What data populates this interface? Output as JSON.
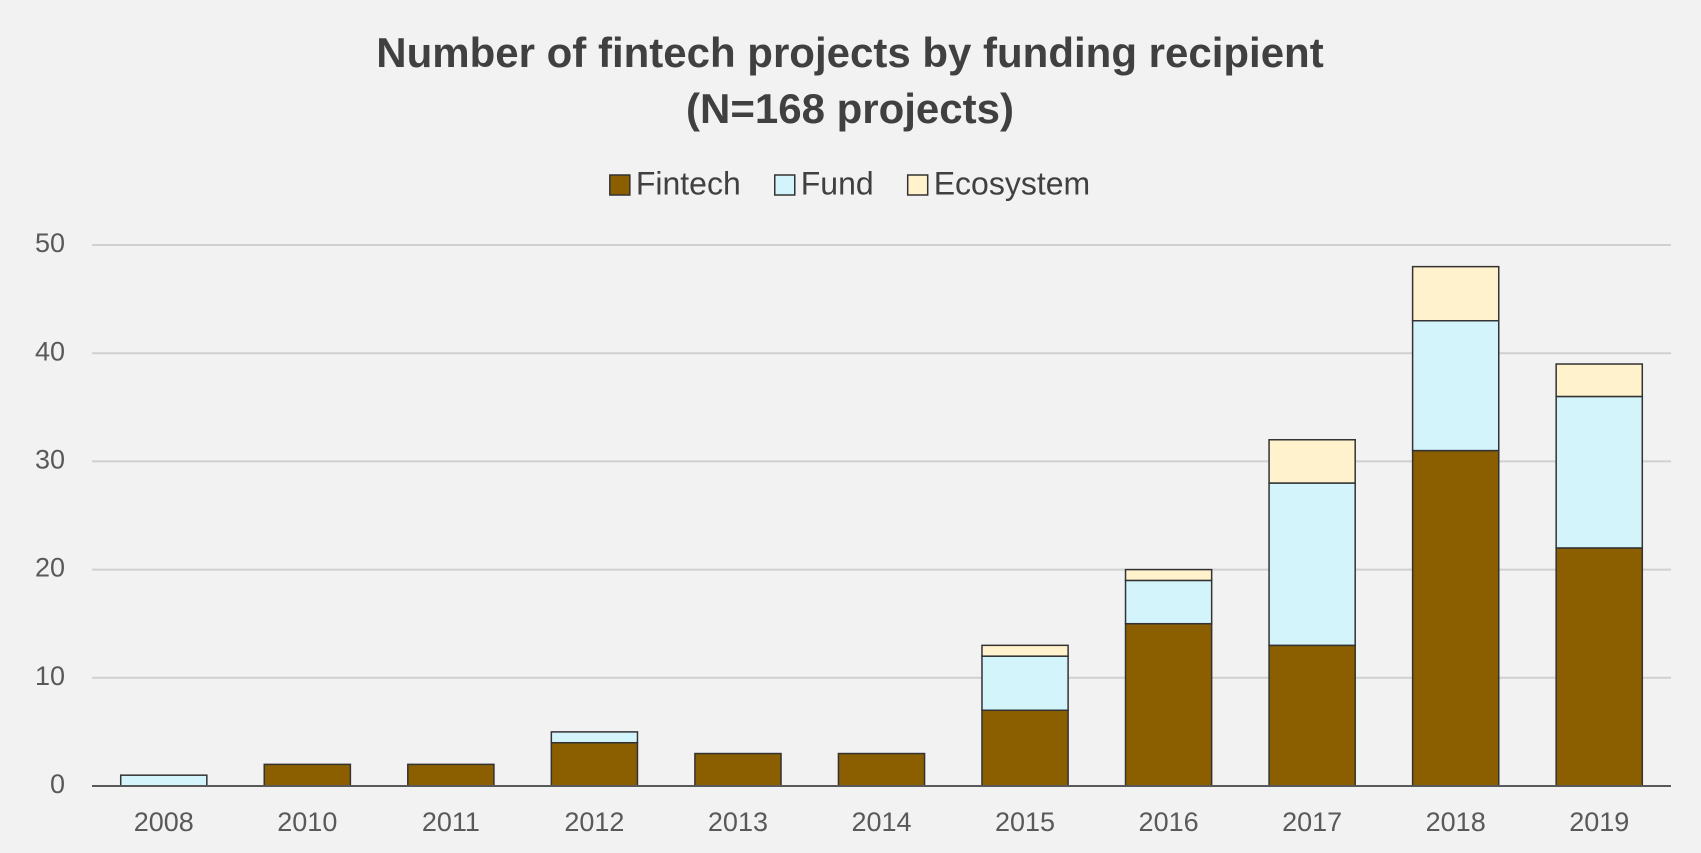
{
  "chart_data": {
    "type": "stacked_bar",
    "title": "Number of fintech projects by funding recipient",
    "subtitle": "(N=168 projects)",
    "categories": [
      "2008",
      "2010",
      "2011",
      "2012",
      "2013",
      "2014",
      "2015",
      "2016",
      "2017",
      "2018",
      "2019"
    ],
    "series": [
      {
        "name": "Fintech",
        "color": "#8b5e00",
        "values": [
          0,
          2,
          2,
          4,
          3,
          3,
          7,
          15,
          13,
          31,
          22
        ]
      },
      {
        "name": "Fund",
        "color": "#d4f4fc",
        "values": [
          1,
          0,
          0,
          1,
          0,
          0,
          5,
          4,
          15,
          12,
          14
        ]
      },
      {
        "name": "Ecosystem",
        "color": "#fff2cc",
        "values": [
          0,
          0,
          0,
          0,
          0,
          0,
          1,
          1,
          4,
          5,
          3
        ]
      }
    ],
    "ylim": [
      0,
      50
    ],
    "yticks": [
      0,
      10,
      20,
      30,
      40,
      50
    ],
    "grid": true,
    "legend": "top"
  }
}
